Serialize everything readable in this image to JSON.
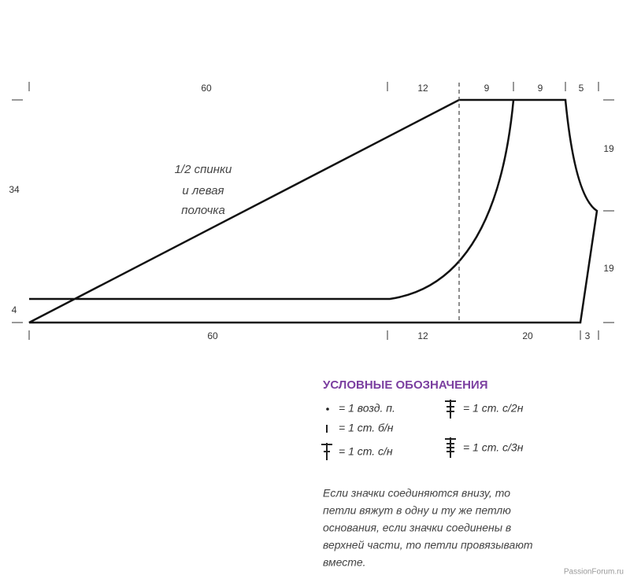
{
  "dimensions": {
    "top": [
      "60",
      "12",
      "9",
      "9",
      "5"
    ],
    "bottom": [
      "60",
      "12",
      "20",
      "3"
    ],
    "left": [
      "34",
      "4"
    ],
    "right": [
      "19",
      "19"
    ]
  },
  "label": [
    "1/2 спинки",
    "и левая",
    "полочка"
  ],
  "legend": {
    "title": "УСЛОВНЫЕ ОБОЗНАЧЕНИЯ",
    "items": [
      "= 1 возд. п.",
      "= 1 ст. с/2н",
      "= 1 ст. б/н",
      "= 1 ст. с/н",
      "= 1 ст. с/3н"
    ]
  },
  "note": [
    "Если значки соединяются внизу, то",
    "петли вяжут в одну и ту же петлю",
    "основания, если значки соединены в",
    "верхней части, то петли провязывают",
    "вместе."
  ],
  "watermark": "PassionForum.ru"
}
